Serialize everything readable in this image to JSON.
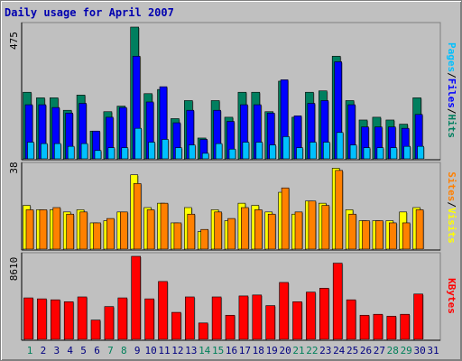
{
  "title": "Daily usage for April 2007",
  "colors": {
    "hits": "#007f5f",
    "files": "#0000ff",
    "pages": "#00c0ff",
    "visits": "#ffff00",
    "sites": "#ff8000",
    "kbytes": "#ff0000",
    "weekday_label": "#000080",
    "weekend_label": "#00805a",
    "background": "#c0c0c0",
    "title": "#0000b0"
  },
  "chart_data": [
    {
      "type": "bar",
      "ymax_label": "475",
      "ymax": 475,
      "legend": [
        {
          "text": "Hits",
          "color": "#007f5f"
        },
        {
          "text": "Files",
          "color": "#0000ff"
        },
        {
          "text": "Pages",
          "color": "#00c0ff"
        }
      ],
      "x": [
        1,
        2,
        3,
        4,
        5,
        6,
        7,
        8,
        9,
        10,
        11,
        12,
        13,
        14,
        15,
        16,
        17,
        18,
        19,
        20,
        21,
        22,
        23,
        24,
        25,
        26,
        27,
        28,
        29,
        30,
        31
      ],
      "series": [
        {
          "name": "Hits",
          "values": [
            240,
            220,
            220,
            175,
            230,
            100,
            170,
            190,
            475,
            235,
            250,
            145,
            210,
            75,
            210,
            150,
            240,
            240,
            170,
            280,
            150,
            240,
            245,
            370,
            210,
            140,
            150,
            140,
            125,
            220,
            0
          ]
        },
        {
          "name": "Files",
          "values": [
            195,
            195,
            185,
            165,
            200,
            100,
            150,
            185,
            370,
            205,
            260,
            130,
            175,
            70,
            175,
            135,
            195,
            195,
            165,
            285,
            155,
            200,
            210,
            350,
            195,
            115,
            115,
            115,
            110,
            160,
            0
          ]
        },
        {
          "name": "Pages",
          "values": [
            60,
            55,
            55,
            45,
            55,
            30,
            40,
            40,
            110,
            60,
            70,
            40,
            50,
            20,
            55,
            35,
            60,
            60,
            50,
            80,
            40,
            60,
            60,
            95,
            50,
            40,
            40,
            40,
            45,
            45,
            0
          ]
        }
      ]
    },
    {
      "type": "bar",
      "ymax_label": "38",
      "ymax": 38,
      "legend": [
        {
          "text": "Sites",
          "color": "#ff8000"
        },
        {
          "text": "Visits",
          "color": "#ffff00"
        }
      ],
      "x": [
        1,
        2,
        3,
        4,
        5,
        6,
        7,
        8,
        9,
        10,
        11,
        12,
        13,
        14,
        15,
        16,
        17,
        18,
        19,
        20,
        21,
        22,
        23,
        24,
        25,
        26,
        27,
        28,
        29,
        30,
        31
      ],
      "series": [
        {
          "name": "Visits",
          "values": [
            20,
            18,
            18,
            17,
            18,
            12,
            13,
            17,
            34,
            19,
            21,
            12,
            19,
            8,
            18,
            13,
            21,
            20,
            17,
            26,
            16,
            22,
            21,
            37,
            18,
            13,
            13,
            13,
            17,
            19,
            0
          ]
        },
        {
          "name": "Sites",
          "values": [
            18,
            18,
            19,
            16,
            17,
            12,
            14,
            17,
            30,
            18,
            21,
            12,
            16,
            9,
            17,
            14,
            19,
            18,
            16,
            28,
            17,
            22,
            20,
            36,
            16,
            13,
            13,
            12,
            12,
            18,
            0
          ]
        }
      ]
    },
    {
      "type": "bar",
      "ymax_label": "8610",
      "ymax": 8610,
      "legend": [
        {
          "text": "KBytes",
          "color": "#ff0000"
        }
      ],
      "x": [
        1,
        2,
        3,
        4,
        5,
        6,
        7,
        8,
        9,
        10,
        11,
        12,
        13,
        14,
        15,
        16,
        17,
        18,
        19,
        20,
        21,
        22,
        23,
        24,
        25,
        26,
        27,
        28,
        29,
        30,
        31
      ],
      "series": [
        {
          "name": "KBytes",
          "values": [
            4300,
            4200,
            4100,
            3900,
            4400,
            2000,
            3400,
            4300,
            8610,
            4200,
            6000,
            2800,
            4400,
            1700,
            4400,
            2500,
            4500,
            4600,
            3500,
            5900,
            3900,
            4900,
            5300,
            7900,
            4100,
            2500,
            2600,
            2400,
            2600,
            4700,
            0
          ]
        }
      ]
    }
  ]
}
